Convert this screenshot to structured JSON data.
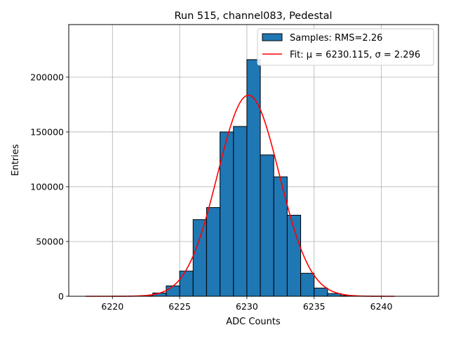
{
  "chart_data": {
    "type": "bar",
    "title": "Run 515, channel083, Pedestal",
    "xlabel": "ADC Counts",
    "ylabel": "Entries",
    "xlim": [
      6216.75,
      6244.25
    ],
    "ylim": [
      0,
      248000
    ],
    "xticks": [
      6220,
      6225,
      6230,
      6235,
      6240
    ],
    "yticks": [
      0,
      50000,
      100000,
      150000,
      200000
    ],
    "grid": true,
    "legend_position": "top-right",
    "histogram": {
      "name": "Samples: RMS=2.26",
      "color": "#1f77b4",
      "bin_width": 1,
      "bin_starts": [
        6222,
        6223,
        6224,
        6225,
        6226,
        6227,
        6228,
        6229,
        6230,
        6231,
        6232,
        6233,
        6234,
        6235,
        6236,
        6237
      ],
      "values": [
        400,
        3000,
        9500,
        23000,
        70000,
        81000,
        150000,
        155000,
        216000,
        129000,
        109000,
        74000,
        21000,
        7500,
        2500,
        600
      ]
    },
    "fit": {
      "name": "Fit: μ = 6230.115, σ = 2.296",
      "color": "#ff0000",
      "mu": 6230.115,
      "sigma": 2.296,
      "amplitude": 183500,
      "x_range": [
        6218,
        6241
      ]
    }
  }
}
